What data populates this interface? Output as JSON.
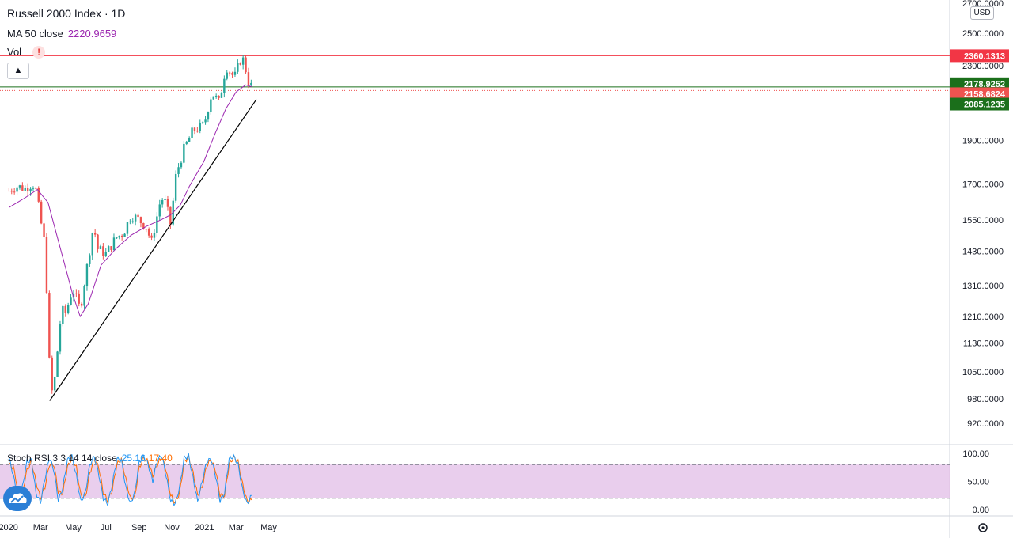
{
  "legend": {
    "title": "Russell 2000 Index · 1D",
    "ma_label": "MA 50 close",
    "ma_value": "2220.9659",
    "vol_label": "Vol",
    "vol_warning": "!",
    "collapse_icon": "chevron-up-icon",
    "stoch_label": "Stoch RSI 3 3 14 14 close",
    "stoch_k": "25.16",
    "stoch_d": "17.40"
  },
  "currency": "USD",
  "chart_data": {
    "type": "line",
    "subtype": "candlestick with moving average, trendline and Stoch RSI panel",
    "title": "Russell 2000 Index · 1D",
    "scale": "log",
    "ylim": [
      880,
      2720
    ],
    "grid": false,
    "x_tick_labels": [
      "2020",
      "Mar",
      "May",
      "Jul",
      "Sep",
      "Nov",
      "2021",
      "Mar",
      "May"
    ],
    "y_tick_labels": [
      "2700.0000",
      "2500.0000",
      "2300.0000",
      "1900.0000",
      "1700.0000",
      "1550.0000",
      "1430.0000",
      "1310.0000",
      "1210.0000",
      "1130.0000",
      "1050.0000",
      "980.0000",
      "920.0000"
    ],
    "price_series": {
      "name": "Russell 2000 Index",
      "x": [
        "2020-01-02",
        "2020-01-15",
        "2020-02-01",
        "2020-02-14",
        "2020-02-20",
        "2020-03-01",
        "2020-03-09",
        "2020-03-18",
        "2020-03-24",
        "2020-04-01",
        "2020-04-09",
        "2020-04-17",
        "2020-04-30",
        "2020-05-14",
        "2020-05-29",
        "2020-06-08",
        "2020-06-15",
        "2020-07-01",
        "2020-07-20",
        "2020-08-03",
        "2020-08-17",
        "2020-09-01",
        "2020-09-15",
        "2020-09-24",
        "2020-10-12",
        "2020-10-20",
        "2020-10-30",
        "2020-11-09",
        "2020-11-24",
        "2020-12-11",
        "2020-12-31",
        "2021-01-15",
        "2021-01-29",
        "2021-02-10",
        "2021-02-26",
        "2021-03-12",
        "2021-03-19",
        "2021-03-25",
        "2021-03-30"
      ],
      "y": [
        1670,
        1690,
        1680,
        1700,
        1690,
        1550,
        1450,
        1050,
        980,
        1100,
        1230,
        1220,
        1300,
        1230,
        1400,
        1530,
        1440,
        1420,
        1480,
        1500,
        1570,
        1550,
        1520,
        1460,
        1640,
        1620,
        1530,
        1740,
        1860,
        1950,
        1975,
        2150,
        2090,
        2300,
        2230,
        2360,
        2280,
        2200,
        2180
      ]
    },
    "ma_series": {
      "name": "MA 50 close",
      "x": [
        "2020-01-02",
        "2020-02-01",
        "2020-02-24",
        "2020-03-15",
        "2020-04-07",
        "2020-04-30",
        "2020-05-14",
        "2020-05-29",
        "2020-06-22",
        "2020-07-20",
        "2020-08-17",
        "2020-09-15",
        "2020-10-12",
        "2020-10-30",
        "2020-11-17",
        "2020-12-04",
        "2020-12-31",
        "2021-01-22",
        "2021-02-10",
        "2021-03-01",
        "2021-03-19",
        "2021-03-30"
      ],
      "y": [
        1600,
        1640,
        1675,
        1620,
        1440,
        1280,
        1210,
        1250,
        1380,
        1440,
        1490,
        1525,
        1550,
        1570,
        1610,
        1690,
        1800,
        1940,
        2060,
        2150,
        2190,
        2180
      ]
    },
    "trendline": {
      "x": [
        "2020-03-18",
        "2021-04-08"
      ],
      "y": [
        975,
        2110
      ]
    },
    "horizontal_levels": [
      {
        "label": "2360.1313",
        "color": "#f23645"
      },
      {
        "label": "2178.9252",
        "color": "#1b6f1b"
      },
      {
        "label": "2158.6824",
        "color": "#ef5350"
      },
      {
        "label": "2085.1235",
        "color": "#1b6f1b"
      }
    ],
    "level_values": [
      2360.1313,
      2178.9252,
      2158.6824,
      2085.1235
    ],
    "stoch": {
      "name": "Stoch RSI 3 3 14 14 close",
      "ylim": [
        0,
        100
      ],
      "y_tick_labels": [
        "100.00",
        "50.00",
        "0.00"
      ],
      "band": [
        20,
        80
      ],
      "k_final": 25.16,
      "d_final": 17.4,
      "k_series": [
        92,
        60,
        18,
        40,
        85,
        88,
        30,
        12,
        55,
        92,
        70,
        15,
        40,
        88,
        95,
        60,
        14,
        30,
        80,
        95,
        62,
        20,
        10,
        45,
        90,
        88,
        40,
        10,
        30,
        85,
        95,
        80,
        50,
        88,
        96,
        60,
        15,
        10,
        40,
        92,
        95,
        55,
        14,
        50,
        85,
        90,
        60,
        15,
        30,
        90,
        95,
        80,
        35,
        10,
        25
      ],
      "d_series": [
        80,
        75,
        35,
        30,
        70,
        85,
        50,
        20,
        40,
        80,
        80,
        30,
        30,
        75,
        92,
        75,
        25,
        22,
        65,
        90,
        75,
        30,
        15,
        35,
        80,
        90,
        55,
        20,
        22,
        75,
        92,
        85,
        60,
        80,
        93,
        70,
        25,
        12,
        30,
        85,
        93,
        65,
        25,
        40,
        78,
        88,
        70,
        25,
        25,
        80,
        93,
        85,
        45,
        15,
        17
      ]
    },
    "colors": {
      "up": "#26a69a",
      "down": "#ef5350",
      "ma": "#9c27b0",
      "k": "#2196f3",
      "d": "#ff6d00",
      "band": "#e1bee7",
      "trend": "#000000"
    }
  }
}
